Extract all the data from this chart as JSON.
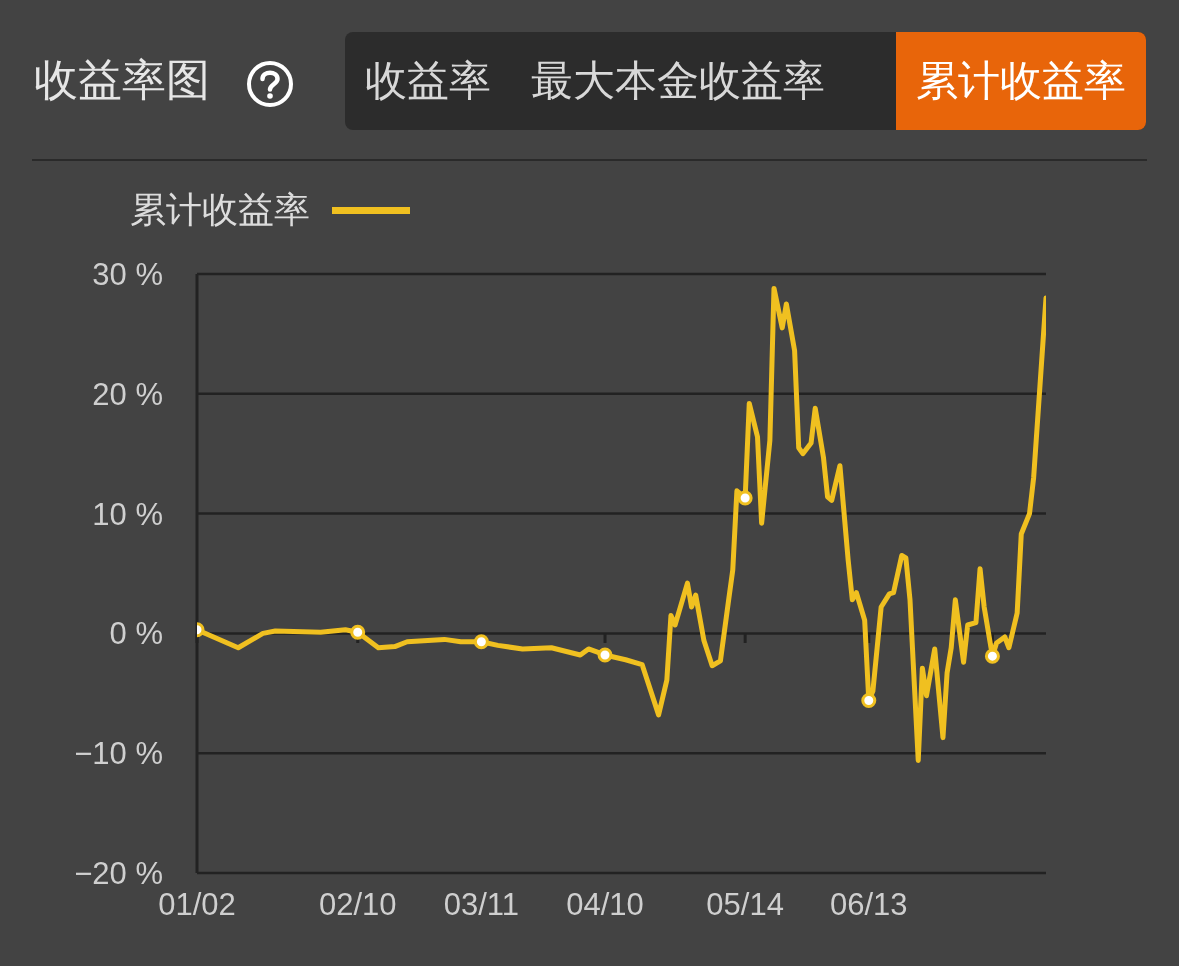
{
  "chart_data": {
    "type": "line",
    "title": "收益率图",
    "annotations": [
      "收益率",
      "最大本金收益率",
      "累计收益率"
    ],
    "x": [
      "--01-02",
      "--01-12",
      "--01-18",
      "--01-21",
      "--02-01",
      "--02-07",
      "--02-10",
      "--02-15",
      "--02-19",
      "--02-22",
      "--03-02",
      "--03-06",
      "--03-11",
      "--03-15",
      "--03-21",
      "--03-28",
      "--04-04",
      "--04-06",
      "--04-10",
      "--04-15",
      "--04-19",
      "--04-23",
      "--04-25",
      "--04-26",
      "--04-27",
      "--04-30",
      "--05-01",
      "--05-02",
      "--05-04",
      "--05-06",
      "--05-08",
      "--05-10",
      "--05-11",
      "--05-12",
      "--05-14",
      "--05-15",
      "--05-17",
      "--05-18",
      "--05-20",
      "--05-21",
      "--05-23",
      "--05-24",
      "--05-26",
      "--05-27",
      "--05-28",
      "--05-30",
      "--05-31",
      "--06-02",
      "--06-03",
      "--06-04",
      "--06-06",
      "--06-08",
      "--06-09",
      "--06-10",
      "--06-12",
      "--06-13",
      "--06-14",
      "--06-16",
      "--06-18",
      "--06-19",
      "--06-21",
      "--06-22",
      "--06-23",
      "--06-25",
      "--06-26",
      "--06-27",
      "--06-29",
      "--07-01",
      "--07-02",
      "--07-03",
      "--07-04",
      "--07-06",
      "--07-07",
      "--07-09",
      "--07-10",
      "--07-11",
      "--07-13",
      "--07-14",
      "--07-16",
      "--07-17",
      "--07-19",
      "--07-20",
      "--07-22",
      "--07-23",
      "--07-26"
    ],
    "series": [
      {
        "name": "累计收益率",
        "color": "#f0c020",
        "values": [
          0.3,
          -1.2,
          0,
          0.2,
          0.1,
          0.3,
          0.1,
          -1.2,
          -1.1,
          -0.7,
          -0.5,
          -0.7,
          -0.7,
          -1.0,
          -1.3,
          -1.2,
          -1.8,
          -1.3,
          -1.8,
          -2.2,
          -2.6,
          -6.8,
          -3.9,
          1.5,
          0.7,
          4.2,
          2.2,
          3.2,
          -0.6,
          -2.7,
          -2.3,
          2.8,
          5.3,
          11.9,
          11.3,
          19.2,
          16.4,
          9.2,
          16.1,
          28.8,
          25.5,
          27.5,
          23.6,
          15.5,
          15.0,
          15.9,
          18.8,
          14.7,
          11.4,
          11.1,
          14.0,
          6.1,
          2.8,
          3.4,
          1.1,
          -5.6,
          -4.8,
          2.2,
          3.3,
          3.4,
          6.5,
          6.3,
          2.8,
          -10.6,
          -2.9,
          -5.2,
          -1.3,
          -8.7,
          -3.3,
          -1.2,
          2.8,
          -2.4,
          0.7,
          0.9,
          5.4,
          2.2,
          -1.9,
          -0.8,
          -0.3,
          -1.2,
          1.7,
          8.3,
          10.0,
          13.0,
          28.0
        ]
      },
      {
        "type": "scatter",
        "color": "#ffffff",
        "marker": "circle",
        "x": [
          "--01-02",
          "--02-10",
          "--03-11",
          "--04-10",
          "--05-14",
          "--06-13",
          "--07-13"
        ],
        "values": [
          0.3,
          0.1,
          -0.7,
          -1.8,
          11.3,
          -5.6,
          -1.9
        ]
      }
    ],
    "xlim": [
      "--01-02",
      "--07-26"
    ],
    "xticks": [
      {
        "value": "--01-02",
        "label": "01/02"
      },
      {
        "value": "--02-10",
        "label": "02/10"
      },
      {
        "value": "--03-11",
        "label": "03/11"
      },
      {
        "value": "--04-10",
        "label": "04/10"
      },
      {
        "value": "--05-14",
        "label": "05/14"
      },
      {
        "value": "--06-13",
        "label": "06/13"
      },
      {
        "value": "--07-13",
        "label": null
      }
    ],
    "ylim": [
      -20,
      30
    ],
    "yticks": [
      {
        "value": -20,
        "label": "−20 %"
      },
      {
        "value": -10,
        "label": "−10 %"
      },
      {
        "value": 0,
        "label": "0 %"
      },
      {
        "value": 10,
        "label": "10 %"
      },
      {
        "value": 20,
        "label": "20 %"
      },
      {
        "value": 30,
        "label": "30 %"
      }
    ],
    "grid": "y",
    "legend": "top left",
    "line_style": "solid"
  }
}
